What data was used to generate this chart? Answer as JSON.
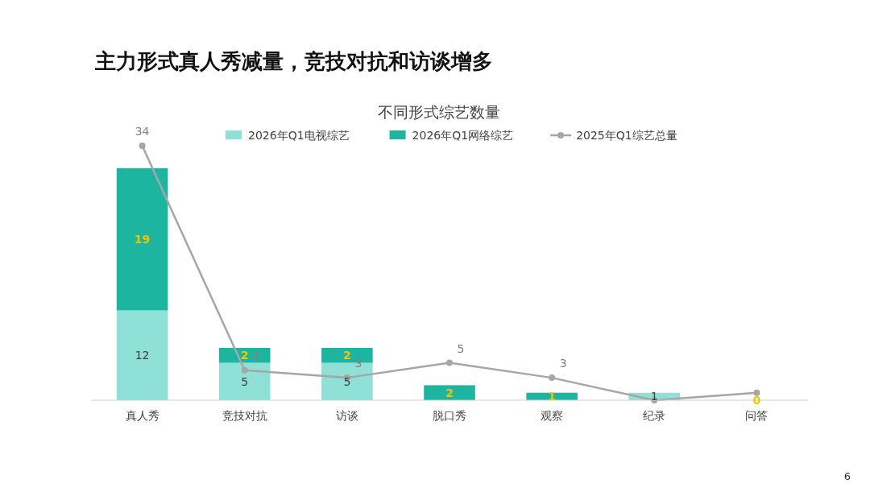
{
  "chart_data": {
    "type": "bar",
    "stacked": true,
    "title": "主力形式真人秀减量，竞技对抗和访谈增多",
    "subtitle": "不同形式综艺数量",
    "categories": [
      "真人秀",
      "竞技对抗",
      "访谈",
      "脱口秀",
      "观察",
      "纪录",
      "问答"
    ],
    "series": [
      {
        "name": "2026年Q1电视综艺",
        "color": "#8fe0d6",
        "values": [
          12,
          5,
          5,
          0,
          0,
          1,
          0
        ],
        "value_labels": [
          "12",
          "5",
          "5",
          null,
          null,
          "1",
          null
        ]
      },
      {
        "name": "2026年Q1网络综艺",
        "color": "#1db5a0",
        "values": [
          19,
          2,
          2,
          2,
          1,
          0,
          0
        ],
        "value_labels": [
          "19",
          "2",
          "2",
          "2",
          "1",
          null,
          "0"
        ]
      },
      {
        "name": "2025年Q1综艺总量",
        "type": "line",
        "color": "#a6a6a6",
        "marker": "circle",
        "values": [
          34,
          4,
          3,
          5,
          3,
          0,
          1
        ],
        "value_labels": [
          "34",
          "4",
          "3",
          "5",
          "3",
          null,
          null
        ]
      }
    ],
    "legend": "top",
    "annotations": [
      "6"
    ]
  }
}
